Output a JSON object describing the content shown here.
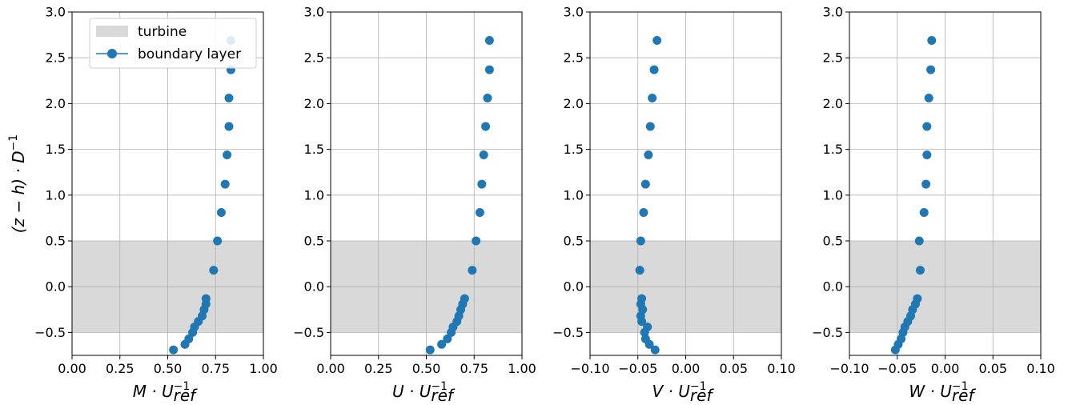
{
  "chart_data": [
    {
      "type": "scatter",
      "xlabel": "M · U_ref^-1",
      "xlabel_parts": {
        "main": "M · U",
        "sup": "−1",
        "sub": "ref"
      },
      "ylabel": "(z − h) · D^-1",
      "xlim": [
        0.0,
        1.0
      ],
      "ylim": [
        -0.75,
        3.0
      ],
      "xticks": [
        "0.00",
        "0.25",
        "0.50",
        "0.75",
        "1.00"
      ],
      "yticks": [
        "−0.5",
        "0.0",
        "0.5",
        "1.0",
        "1.5",
        "2.0",
        "2.5",
        "3.0"
      ],
      "grid": true,
      "legend": {
        "placement": "upper center",
        "entries": [
          "turbine",
          "boundary layer"
        ]
      },
      "turbine_band": [
        -0.5,
        0.5
      ],
      "series": [
        {
          "name": "boundary layer",
          "points": [
            [
              0.53,
              -0.69
            ],
            [
              0.59,
              -0.63
            ],
            [
              0.61,
              -0.57
            ],
            [
              0.63,
              -0.5
            ],
            [
              0.64,
              -0.44
            ],
            [
              0.66,
              -0.38
            ],
            [
              0.68,
              -0.32
            ],
            [
              0.69,
              -0.25
            ],
            [
              0.7,
              -0.19
            ],
            [
              0.7,
              -0.13
            ],
            [
              0.74,
              0.18
            ],
            [
              0.76,
              0.5
            ],
            [
              0.78,
              0.81
            ],
            [
              0.8,
              1.12
            ],
            [
              0.81,
              1.44
            ],
            [
              0.82,
              1.75
            ],
            [
              0.82,
              2.06
            ],
            [
              0.83,
              2.37
            ],
            [
              0.83,
              2.69
            ]
          ]
        }
      ]
    },
    {
      "type": "scatter",
      "xlabel": "U · U_ref^-1",
      "xlabel_parts": {
        "main": "U · U",
        "sup": "−1",
        "sub": "ref"
      },
      "xlim": [
        0.0,
        1.0
      ],
      "ylim": [
        -0.75,
        3.0
      ],
      "xticks": [
        "0.00",
        "0.25",
        "0.50",
        "0.75",
        "1.00"
      ],
      "yticks": [
        "−0.5",
        "0.0",
        "0.5",
        "1.0",
        "1.5",
        "2.0",
        "2.5",
        "3.0"
      ],
      "grid": true,
      "turbine_band": [
        -0.5,
        0.5
      ],
      "series": [
        {
          "name": "boundary layer",
          "points": [
            [
              0.52,
              -0.69
            ],
            [
              0.58,
              -0.63
            ],
            [
              0.61,
              -0.57
            ],
            [
              0.63,
              -0.5
            ],
            [
              0.64,
              -0.44
            ],
            [
              0.66,
              -0.38
            ],
            [
              0.67,
              -0.32
            ],
            [
              0.68,
              -0.25
            ],
            [
              0.69,
              -0.19
            ],
            [
              0.7,
              -0.13
            ],
            [
              0.74,
              0.18
            ],
            [
              0.76,
              0.5
            ],
            [
              0.78,
              0.81
            ],
            [
              0.79,
              1.12
            ],
            [
              0.8,
              1.44
            ],
            [
              0.81,
              1.75
            ],
            [
              0.82,
              2.06
            ],
            [
              0.83,
              2.37
            ],
            [
              0.83,
              2.69
            ]
          ]
        }
      ]
    },
    {
      "type": "scatter",
      "xlabel": "V · U_ref^-1",
      "xlabel_parts": {
        "main": "V · U",
        "sup": "−1",
        "sub": "ref"
      },
      "xlim": [
        -0.1,
        0.1
      ],
      "ylim": [
        -0.75,
        3.0
      ],
      "xticks": [
        "−0.10",
        "−0.05",
        "0.00",
        "0.05",
        "0.10"
      ],
      "yticks": [
        "−0.5",
        "0.0",
        "0.5",
        "1.0",
        "1.5",
        "2.0",
        "2.5",
        "3.0"
      ],
      "grid": true,
      "turbine_band": [
        -0.5,
        0.5
      ],
      "series": [
        {
          "name": "boundary layer",
          "points": [
            [
              -0.032,
              -0.69
            ],
            [
              -0.038,
              -0.63
            ],
            [
              -0.042,
              -0.57
            ],
            [
              -0.043,
              -0.5
            ],
            [
              -0.04,
              -0.44
            ],
            [
              -0.046,
              -0.38
            ],
            [
              -0.047,
              -0.32
            ],
            [
              -0.045,
              -0.25
            ],
            [
              -0.047,
              -0.19
            ],
            [
              -0.046,
              -0.13
            ],
            [
              -0.048,
              0.18
            ],
            [
              -0.047,
              0.5
            ],
            [
              -0.044,
              0.81
            ],
            [
              -0.042,
              1.12
            ],
            [
              -0.039,
              1.44
            ],
            [
              -0.037,
              1.75
            ],
            [
              -0.035,
              2.06
            ],
            [
              -0.033,
              2.37
            ],
            [
              -0.03,
              2.69
            ]
          ]
        }
      ]
    },
    {
      "type": "scatter",
      "xlabel": "W · U_ref^-1",
      "xlabel_parts": {
        "main": "W · U",
        "sup": "−1",
        "sub": "ref"
      },
      "xlim": [
        -0.1,
        0.1
      ],
      "ylim": [
        -0.75,
        3.0
      ],
      "xticks": [
        "−0.10",
        "−0.05",
        "0.00",
        "0.05",
        "0.10"
      ],
      "yticks": [
        "−0.5",
        "0.0",
        "0.5",
        "1.0",
        "1.5",
        "2.0",
        "2.5",
        "3.0"
      ],
      "grid": true,
      "turbine_band": [
        -0.5,
        0.5
      ],
      "series": [
        {
          "name": "boundary layer",
          "points": [
            [
              -0.052,
              -0.69
            ],
            [
              -0.049,
              -0.63
            ],
            [
              -0.046,
              -0.57
            ],
            [
              -0.044,
              -0.5
            ],
            [
              -0.042,
              -0.44
            ],
            [
              -0.039,
              -0.38
            ],
            [
              -0.036,
              -0.32
            ],
            [
              -0.034,
              -0.25
            ],
            [
              -0.031,
              -0.19
            ],
            [
              -0.029,
              -0.13
            ],
            [
              -0.026,
              0.18
            ],
            [
              -0.027,
              0.5
            ],
            [
              -0.022,
              0.81
            ],
            [
              -0.02,
              1.12
            ],
            [
              -0.019,
              1.44
            ],
            [
              -0.019,
              1.75
            ],
            [
              -0.017,
              2.06
            ],
            [
              -0.015,
              2.37
            ],
            [
              -0.014,
              2.69
            ]
          ]
        }
      ]
    }
  ],
  "colors": {
    "marker": "#1f77b4",
    "band": "#d9d9d9",
    "grid": "#b0b0b0",
    "axis": "#000000"
  }
}
